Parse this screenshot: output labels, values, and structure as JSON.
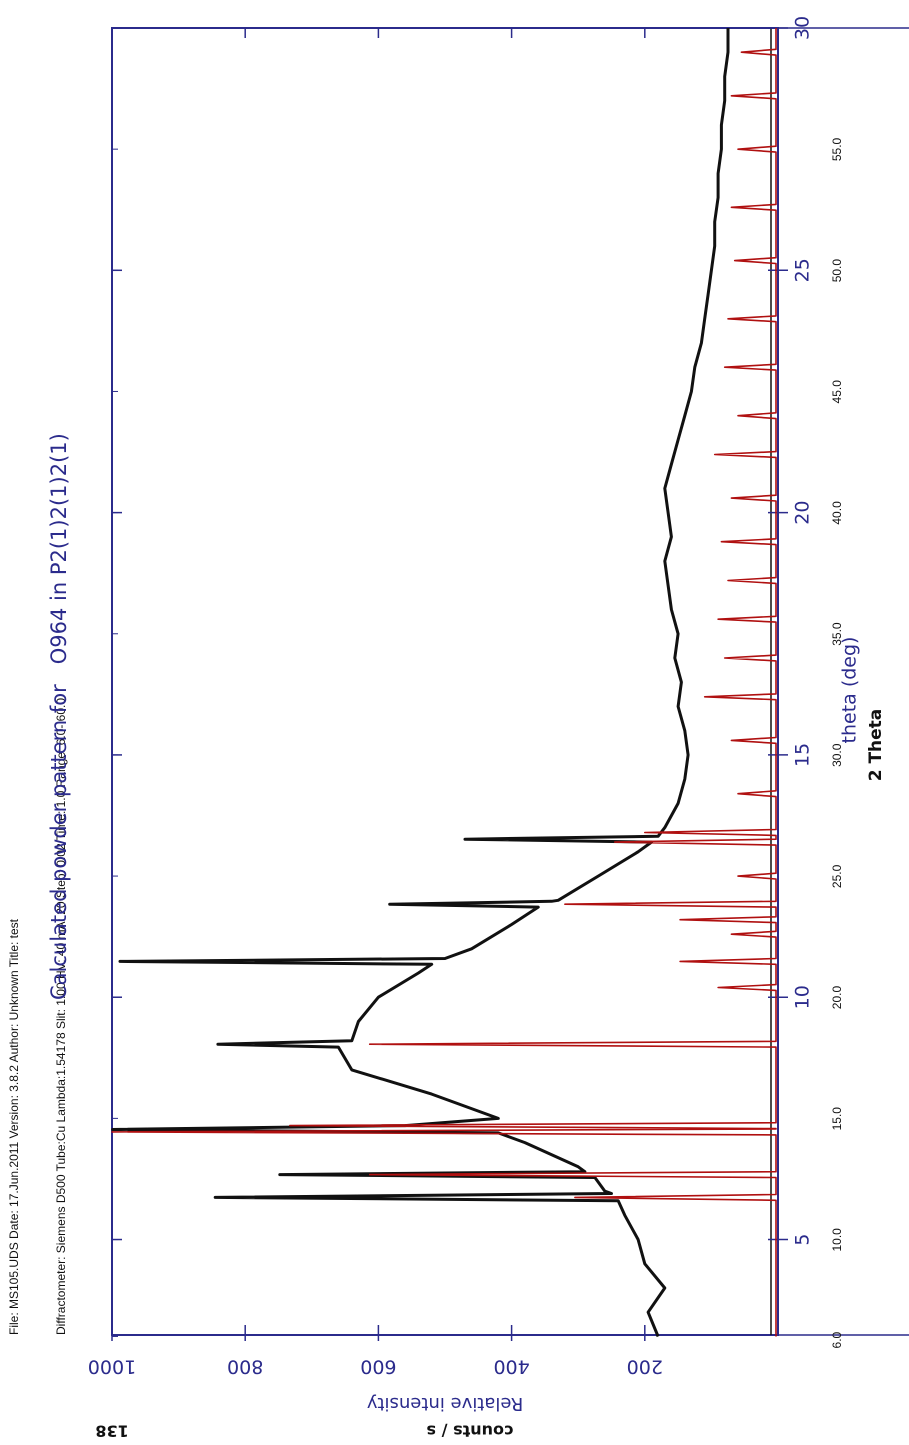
{
  "chart_data": {
    "type": "line",
    "title": "Calculated powder pattern for   O964 in P2(1)2(1)2(1)",
    "header": [
      "File: MS105.UDS Date: 17.Jun.2011 Version: 3.8.2 Author: Unknown Title: test",
      "Diffractometer: Siemens D500 Tube:Cu Lambda:1.54178 Slit: 1.00 HV: 40 mA: 20 Step: 0.02 Time: 1.0 Range: 6.0- 60.0"
    ],
    "x_label": "theta (deg)",
    "x2_label": "2 Theta",
    "y_label": "Relative intensity",
    "y2_label": "counts / s",
    "y2_value": "138",
    "xlim": [
      3.03,
      30
    ],
    "xticks": [
      5,
      10,
      15,
      20,
      25,
      30
    ],
    "x2lim": [
      6.06,
      60
    ],
    "x2ticks": [
      {
        "value": 6,
        "label": "6.0"
      },
      {
        "value": 10,
        "label": "10.0"
      },
      {
        "value": 15,
        "label": "15.0"
      },
      {
        "value": 20,
        "label": "20.0"
      },
      {
        "value": 25,
        "label": "25.0"
      },
      {
        "value": 30,
        "label": "30.0"
      },
      {
        "value": 35,
        "label": "35.0"
      },
      {
        "value": 40,
        "label": "40.0"
      },
      {
        "value": 45,
        "label": "45.0"
      },
      {
        "value": 50,
        "label": "50.0"
      },
      {
        "value": 55,
        "label": "55.0"
      }
    ],
    "ylim": [
      0,
      1000
    ],
    "yticks": [
      200,
      400,
      600,
      800,
      1000
    ],
    "series": [
      {
        "color": "#111111",
        "x": [
          3,
          3.5,
          4,
          4.5,
          5,
          5.5,
          5.8,
          5.87,
          5.95,
          6,
          6.28,
          6.34,
          6.4,
          6.5,
          7,
          7.2,
          7.27,
          7.35,
          7.5,
          8,
          8.5,
          8.97,
          9.03,
          9.1,
          9.5,
          10,
          10.5,
          10.68,
          10.74,
          10.8,
          11,
          11.5,
          11.86,
          11.92,
          11.98,
          12,
          12.5,
          13,
          13.2,
          13.26,
          13.32,
          13.5,
          14,
          14.5,
          15,
          15.5,
          16,
          16.5,
          17,
          17.5,
          18,
          18.5,
          19,
          19.5,
          20,
          20.5,
          21,
          21.5,
          22,
          22.5,
          23,
          23.5,
          24,
          24.5,
          25,
          25.5,
          26,
          26.5,
          27,
          27.5,
          28,
          28.5,
          29,
          29.5,
          30
        ],
        "values": [
          180,
          195,
          170,
          200,
          210,
          230,
          240,
          845,
          250,
          260,
          275,
          748,
          290,
          300,
          380,
          420,
          999,
          560,
          420,
          520,
          640,
          660,
          841,
          640,
          630,
          600,
          540,
          520,
          988,
          500,
          460,
          400,
          360,
          583,
          340,
          330,
          270,
          210,
          190,
          470,
          180,
          170,
          150,
          140,
          135,
          140,
          150,
          145,
          155,
          150,
          160,
          165,
          170,
          160,
          165,
          170,
          160,
          150,
          140,
          130,
          125,
          115,
          110,
          105,
          100,
          95,
          95,
          90,
          90,
          85,
          85,
          80,
          80,
          75,
          75
        ]
      },
      {
        "color": "#b01010",
        "x": [
          3,
          5.81,
          5.87,
          5.93,
          6.28,
          6.34,
          6.4,
          7.16,
          7.22,
          7.28,
          7.29,
          7.35,
          7.41,
          8.97,
          9.03,
          9.09,
          10.14,
          10.2,
          10.26,
          10.68,
          10.74,
          10.8,
          11.24,
          11.3,
          11.36,
          11.54,
          11.6,
          11.66,
          11.86,
          11.92,
          11.98,
          12.44,
          12.5,
          12.56,
          13.14,
          13.2,
          13.26,
          13.34,
          13.4,
          13.46,
          14.14,
          14.2,
          14.26,
          15.24,
          15.3,
          15.36,
          16.14,
          16.2,
          16.26,
          16.94,
          17,
          17.06,
          17.74,
          17.8,
          17.86,
          18.54,
          18.6,
          18.66,
          19.34,
          19.4,
          19.46,
          20.24,
          20.3,
          20.36,
          21.14,
          21.2,
          21.26,
          21.94,
          22,
          22.06,
          22.94,
          23,
          23.06,
          23.94,
          24,
          24.06,
          25.14,
          25.2,
          25.26,
          26.24,
          26.3,
          26.36,
          27.44,
          27.5,
          27.56,
          28.54,
          28.6,
          28.66,
          29.44,
          29.5,
          29.56,
          30
        ],
        "values": [
          3,
          3,
          305,
          3,
          3,
          613,
          3,
          3,
          1000,
          3,
          3,
          733,
          3,
          3,
          613,
          3,
          3,
          90,
          3,
          3,
          147,
          3,
          3,
          70,
          3,
          3,
          147,
          3,
          3,
          320,
          3,
          3,
          60,
          3,
          3,
          245,
          3,
          3,
          200,
          3,
          3,
          60,
          3,
          3,
          70,
          3,
          3,
          110,
          3,
          3,
          80,
          3,
          3,
          90,
          3,
          3,
          75,
          3,
          3,
          85,
          3,
          3,
          70,
          3,
          3,
          95,
          3,
          3,
          60,
          3,
          3,
          80,
          3,
          3,
          75,
          3,
          3,
          65,
          3,
          3,
          70,
          3,
          3,
          60,
          3,
          3,
          70,
          3,
          3,
          55,
          3,
          3
        ]
      }
    ]
  }
}
